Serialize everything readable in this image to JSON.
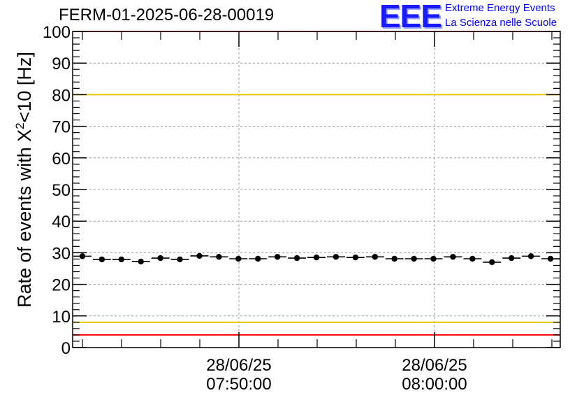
{
  "title": "FERM-01-2025-06-28-00019",
  "logo": {
    "mark": "EEE",
    "line1": "Extreme Energy Events",
    "line2": "La Scienza nelle Scuole"
  },
  "chart_data": {
    "type": "scatter",
    "ylabel_pre": "Rate of events with X",
    "ylabel_sup": "2",
    "ylabel_post": "<10 [Hz]",
    "ylim": [
      0,
      100
    ],
    "yticks": [
      "0",
      "10",
      "20",
      "30",
      "40",
      "50",
      "60",
      "70",
      "80",
      "90",
      "100"
    ],
    "xticks": [
      {
        "date": "28/06/25",
        "time": "07:50:00"
      },
      {
        "date": "28/06/25",
        "time": "08:00:00"
      }
    ],
    "grid": true,
    "series": [
      {
        "marker": "circle",
        "error_bars": "horizontal",
        "values": [
          28.9,
          27.9,
          27.9,
          27.2,
          28.3,
          27.9,
          29.0,
          28.7,
          28.1,
          28.1,
          28.7,
          28.3,
          28.5,
          28.7,
          28.5,
          28.7,
          28.1,
          28.1,
          28.1,
          28.7,
          28.1,
          27.0,
          28.3,
          28.9,
          28.1
        ]
      }
    ],
    "reference_lines": [
      {
        "y": 100,
        "color": "#ff0000"
      },
      {
        "y": 80,
        "color": "#e6c800"
      },
      {
        "y": 8,
        "color": "#e6c800"
      },
      {
        "y": 4,
        "color": "#ff0000"
      }
    ]
  }
}
